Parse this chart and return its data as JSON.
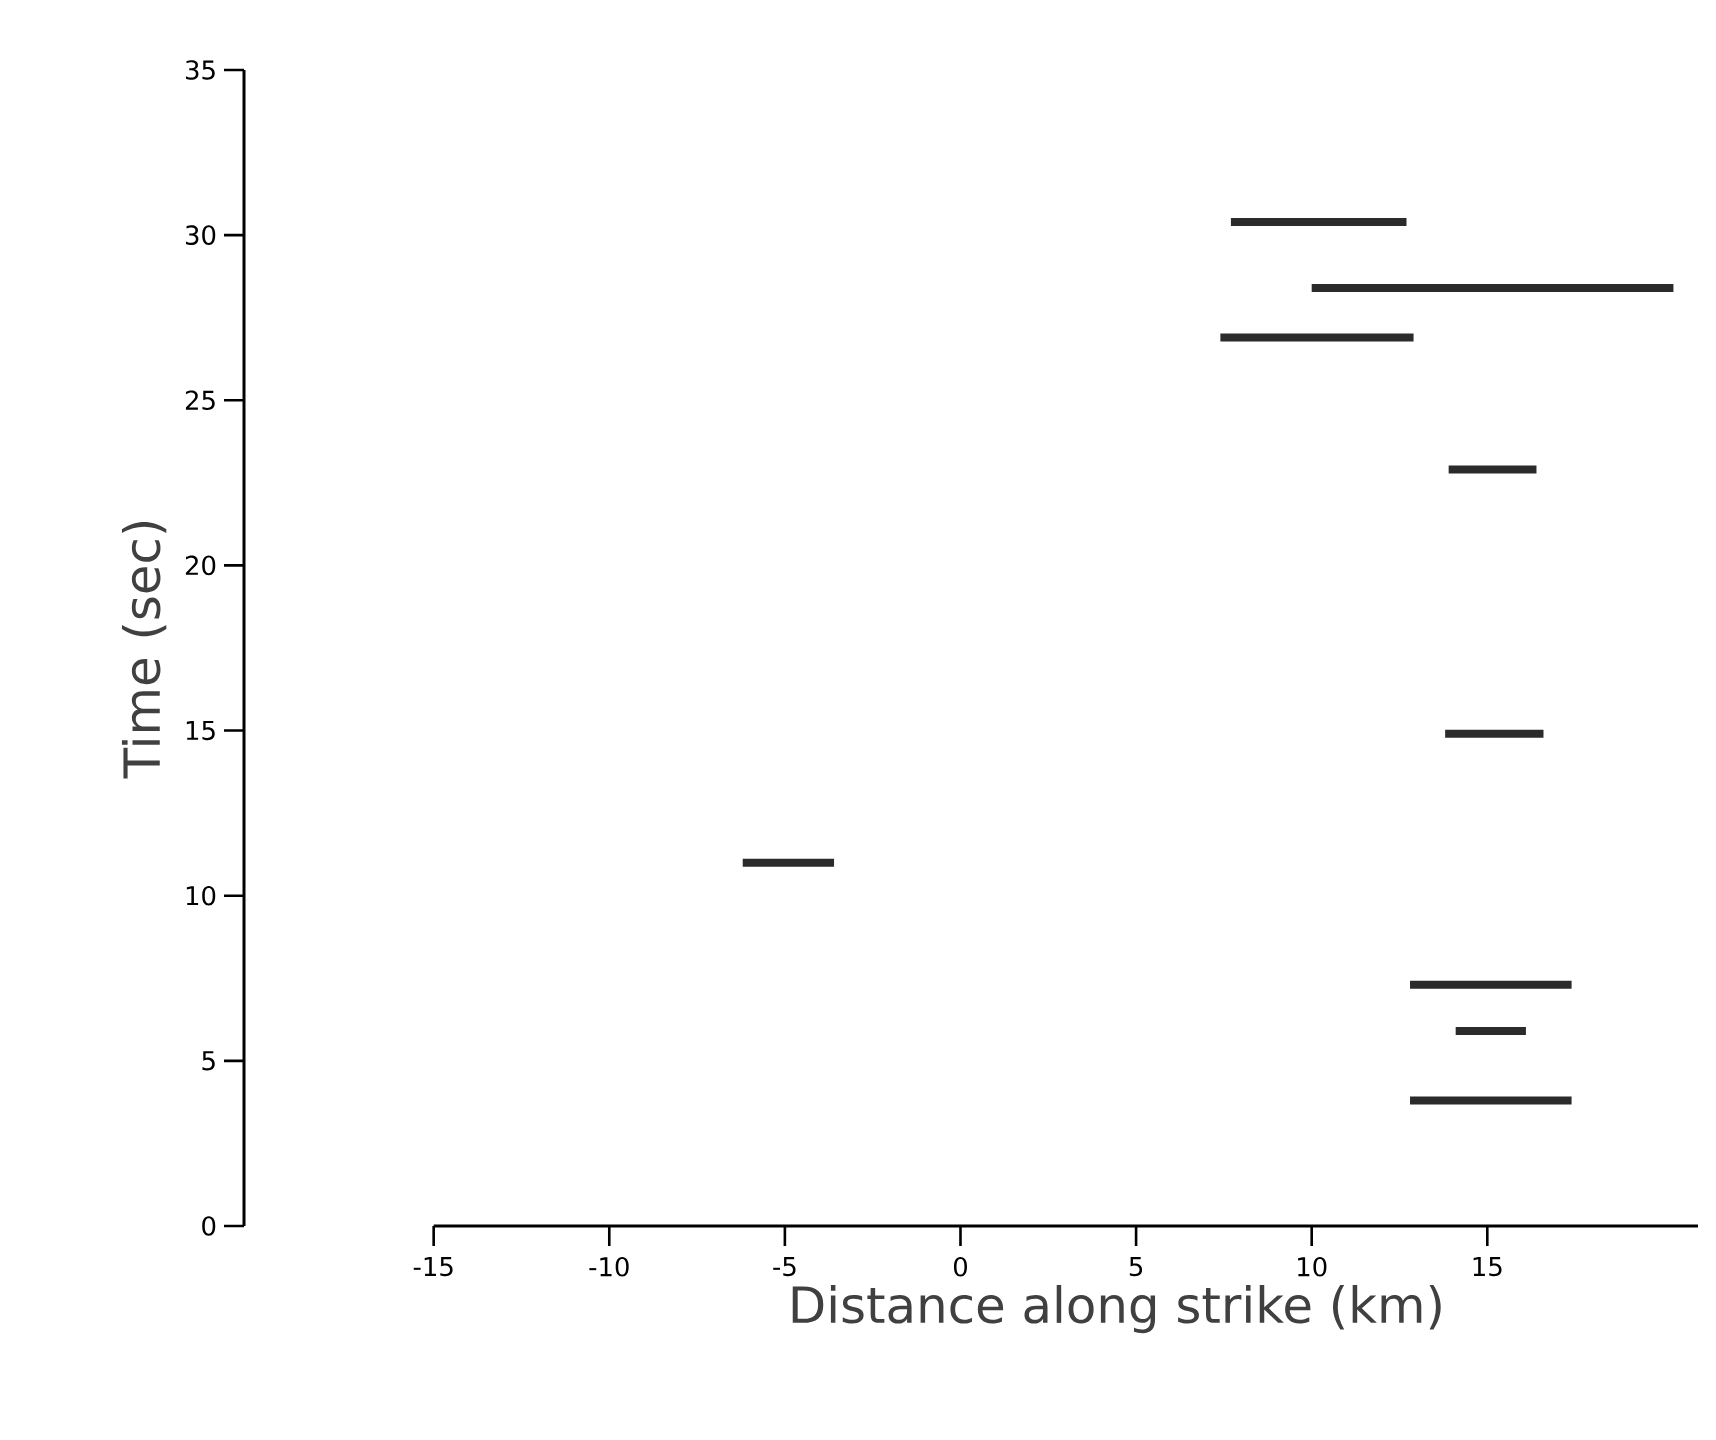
{
  "chart_data": {
    "type": "line",
    "xlabel": "Distance along strike (km)",
    "ylabel": "Time (sec)",
    "xlim": [
      -20.4,
      21
    ],
    "ylim": [
      0,
      35
    ],
    "xticks": [
      -15,
      -10,
      -5,
      0,
      5,
      10,
      15
    ],
    "yticks": [
      0,
      5,
      10,
      15,
      20,
      25,
      30,
      35
    ],
    "grid": false,
    "marker": "none",
    "line_style": "solid",
    "series": [
      {
        "color": "#2b2b2b",
        "x": [
          7.7,
          12.7
        ],
        "values": [
          30.4,
          30.4
        ]
      },
      {
        "color": "#2b2b2b",
        "x": [
          10.0,
          20.3
        ],
        "values": [
          28.4,
          28.4
        ]
      },
      {
        "color": "#2b2b2b",
        "x": [
          7.4,
          12.9
        ],
        "values": [
          26.9,
          26.9
        ]
      },
      {
        "color": "#2b2b2b",
        "x": [
          13.9,
          16.4
        ],
        "values": [
          22.9,
          22.9
        ]
      },
      {
        "color": "#2b2b2b",
        "x": [
          13.8,
          16.6
        ],
        "values": [
          14.9,
          14.9
        ]
      },
      {
        "color": "#2b2b2b",
        "x": [
          -6.2,
          -3.6
        ],
        "values": [
          11.0,
          11.0
        ]
      },
      {
        "color": "#2b2b2b",
        "x": [
          12.8,
          17.4
        ],
        "values": [
          7.3,
          7.3
        ]
      },
      {
        "color": "#2b2b2b",
        "x": [
          14.1,
          16.1
        ],
        "values": [
          5.9,
          5.9
        ]
      },
      {
        "color": "#2b2b2b",
        "x": [
          12.8,
          17.4
        ],
        "values": [
          3.8,
          3.8
        ]
      }
    ]
  }
}
